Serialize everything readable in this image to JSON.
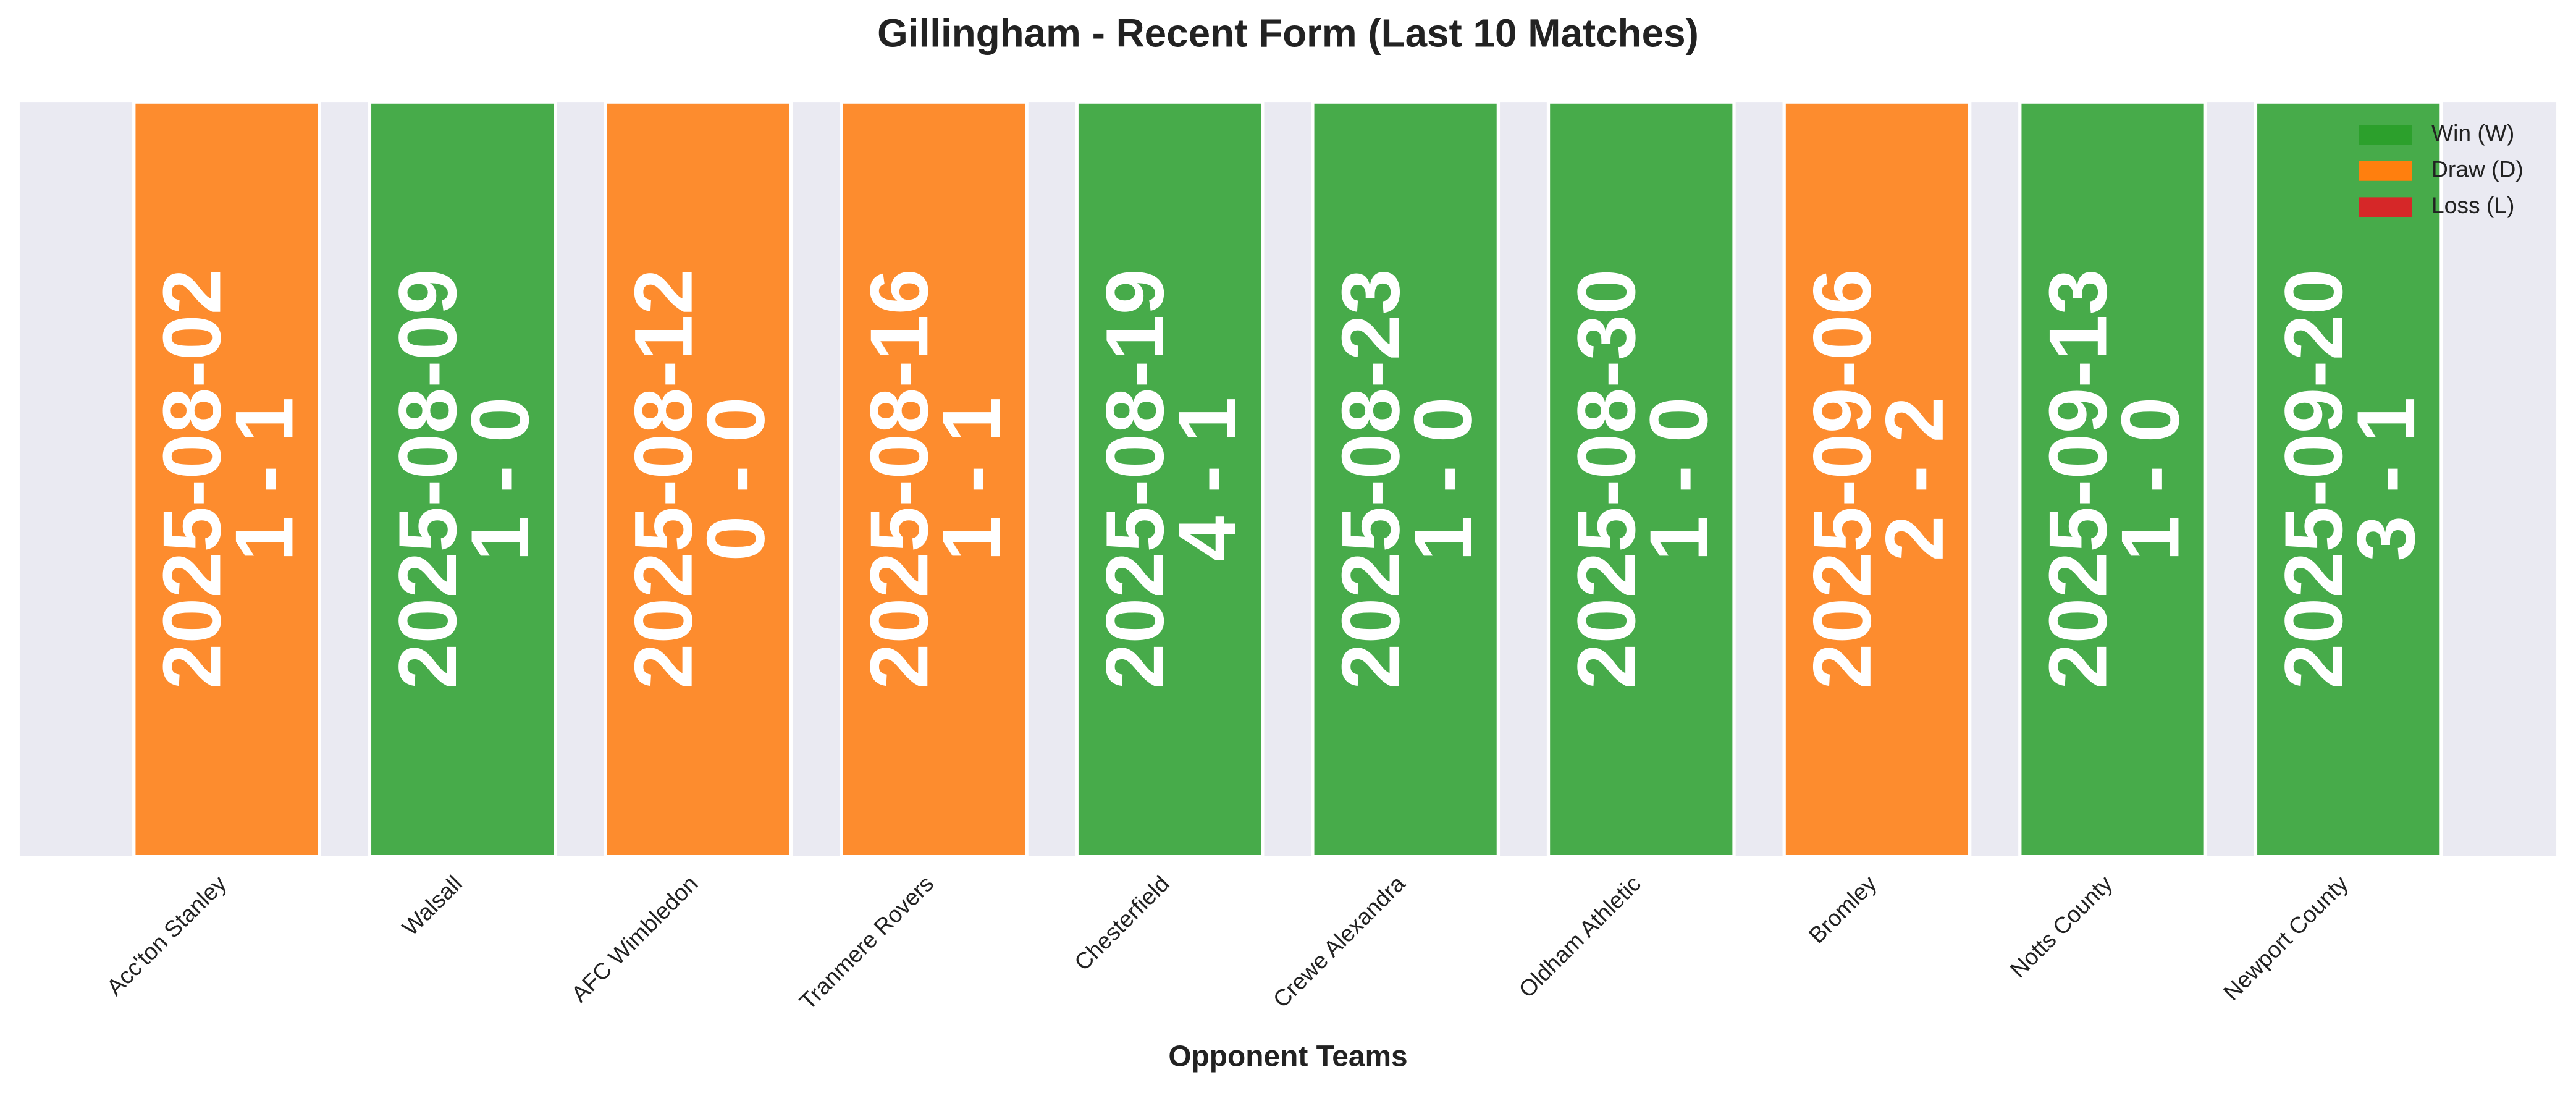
{
  "chart_data": {
    "type": "bar",
    "title": "Gillingham - Recent Form (Last 10 Matches)",
    "x_label": "Opponent Teams",
    "categories": [
      "Acc'ton Stanley",
      "Walsall",
      "AFC Wimbledon",
      "Tranmere Rovers",
      "Chesterfield",
      "Crewe Alexandra",
      "Oldham Athletic",
      "Bromley",
      "Notts County",
      "Newport County"
    ],
    "dates": [
      "2025-08-02",
      "2025-08-09",
      "2025-08-12",
      "2025-08-16",
      "2025-08-19",
      "2025-08-23",
      "2025-08-30",
      "2025-09-06",
      "2025-09-13",
      "2025-09-20"
    ],
    "scores": [
      "1 - 1",
      "1 - 0",
      "0 - 0",
      "1 - 1",
      "4 - 1",
      "1 - 0",
      "1 - 0",
      "2 - 2",
      "1 - 0",
      "3 - 1"
    ],
    "values": [
      1,
      1,
      1,
      1,
      1,
      1,
      1,
      1,
      1,
      1
    ],
    "bar_colors": [
      "#fd8c2e",
      "#47ab4a",
      "#fd8c2e",
      "#fd8c2e",
      "#47ab4a",
      "#47ab4a",
      "#47ab4a",
      "#fd8c2e",
      "#47ab4a",
      "#47ab4a"
    ],
    "ylim": [
      0,
      1
    ],
    "legend": [
      {
        "name": "Win (W)",
        "color": "#2ca02c"
      },
      {
        "name": "Draw (D)",
        "color": "#ff7f0e"
      },
      {
        "name": "Loss (L)",
        "color": "#d62728"
      }
    ],
    "legend_position": "upper right"
  }
}
